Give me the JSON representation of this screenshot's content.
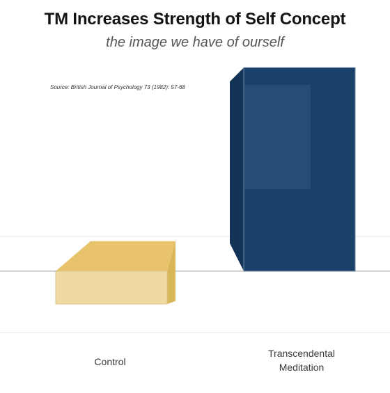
{
  "title": "TM Increases Strength of Self Concept",
  "subtitle": "the image we have of ourself",
  "source": "Source: British Journal of Psychology 73 (1982): 57-68",
  "colors": {
    "control_front": "#efdaa3",
    "control_top": "#e8c36c",
    "control_side": "#d8b65a",
    "tm_front": "#1b416b",
    "tm_side": "#143457",
    "tm_highlight": "#3b6488",
    "grid": "#e6e6e6",
    "baseline": "#cccccc"
  },
  "chart_data": {
    "type": "bar",
    "categories": [
      "Control",
      "Transcendental Meditation"
    ],
    "category_lines": [
      [
        "Control"
      ],
      [
        "Transcendental",
        "Meditation"
      ]
    ],
    "values": [
      0.5,
      3.4
    ],
    "ylim": [
      -0.7,
      3.6
    ],
    "grid": true,
    "baseline_value": 0,
    "title": "TM Increases Strength of Self Concept",
    "xlabel": "",
    "ylabel": ""
  }
}
